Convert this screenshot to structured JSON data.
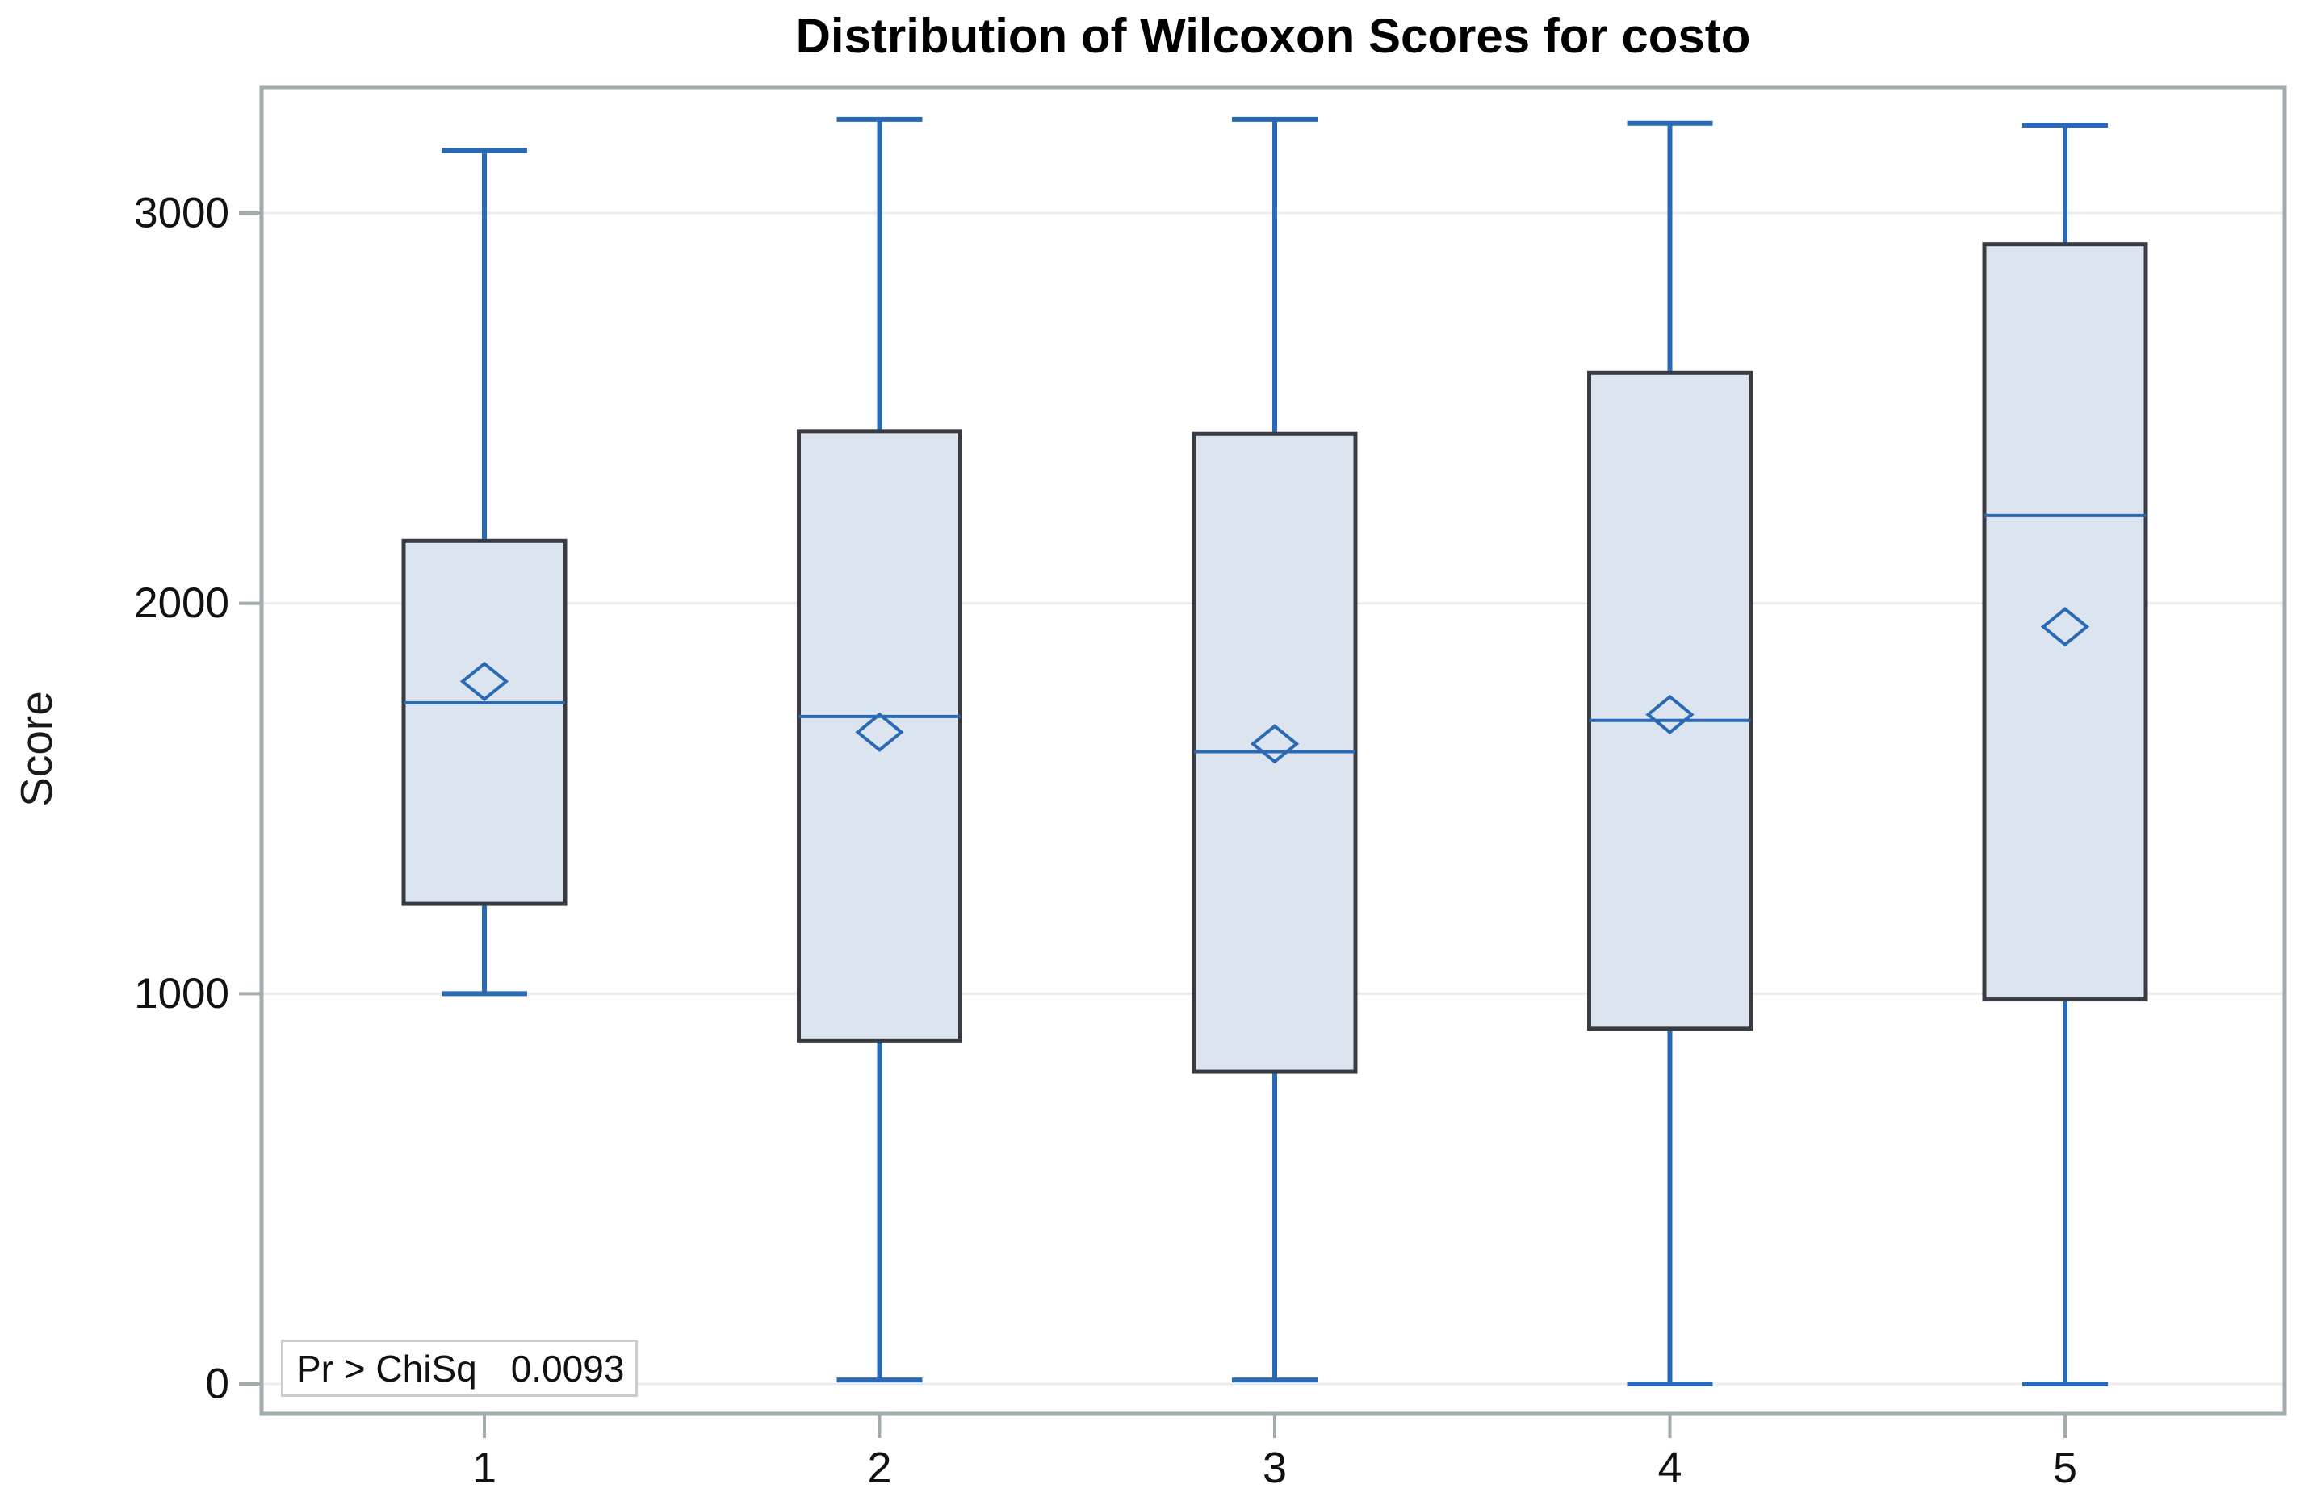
{
  "chart_data": {
    "type": "boxplot",
    "title": "Distribution of Wilcoxon Scores for costo",
    "xlabel": "",
    "ylabel": "Score",
    "categories": [
      "1",
      "2",
      "3",
      "4",
      "5"
    ],
    "yticks": [
      0,
      1000,
      2000,
      3000
    ],
    "ytick_labels": [
      "0",
      "1000",
      "2000",
      "3000"
    ],
    "ylim": [
      -77,
      3323
    ],
    "grid": "horizontal-light",
    "legend": "none",
    "series": [
      {
        "category": "1",
        "low": 1000,
        "q1": 1230,
        "median": 1745,
        "mean": 1800,
        "q3": 2160,
        "high": 3160
      },
      {
        "category": "2",
        "low": 10,
        "q1": 880,
        "median": 1710,
        "mean": 1670,
        "q3": 2440,
        "high": 3240
      },
      {
        "category": "3",
        "low": 10,
        "q1": 800,
        "median": 1620,
        "mean": 1640,
        "q3": 2435,
        "high": 3240
      },
      {
        "category": "4",
        "low": 0,
        "q1": 910,
        "median": 1700,
        "mean": 1715,
        "q3": 2590,
        "high": 3230
      },
      {
        "category": "5",
        "low": 0,
        "q1": 985,
        "median": 2225,
        "mean": 1940,
        "q3": 2920,
        "high": 3225
      }
    ],
    "annotation": {
      "label": "Pr > ChiSq",
      "value": "0.0093"
    },
    "marker_meaning": "hollow diamond = mean, horizontal blue line = median",
    "colors": {
      "blue": "#2A69B3",
      "box_fill": "#DCE4F0",
      "box_border": "#383C42",
      "grid": "#ECECEC",
      "frame": "#A2ABAE",
      "text": "#111111"
    }
  }
}
